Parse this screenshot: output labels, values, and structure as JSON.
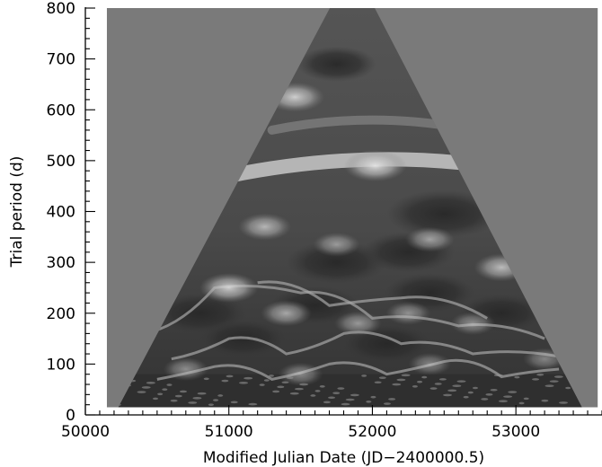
{
  "chart_data": {
    "type": "heatmap",
    "title": "",
    "xlabel": "Modified Julian Date (JD−2400000.5)",
    "ylabel": "Trial period (d)",
    "xlim": [
      50000,
      53600
    ],
    "ylim": [
      0,
      800
    ],
    "x_major_ticks": [
      50000,
      51000,
      52000,
      53000
    ],
    "x_minor_step": 100,
    "y_major_ticks": [
      0,
      100,
      200,
      300,
      400,
      500,
      600,
      700,
      800
    ],
    "y_minor_step": 20,
    "data_x_range": [
      50150,
      53570
    ],
    "data_y_range": [
      15,
      800
    ],
    "colormap": "grayscale",
    "background_color": "#7a7a7a",
    "cone_of_influence": {
      "apex_x": 51860,
      "apex_y": 800,
      "left_base_x": 50230,
      "right_base_x": 53460,
      "base_y": 15
    },
    "bright_features": [
      {
        "x": 52020,
        "y": 490,
        "intensity": 0.95
      },
      {
        "x": 51460,
        "y": 625,
        "intensity": 0.85
      },
      {
        "x": 51250,
        "y": 370,
        "intensity": 0.7
      },
      {
        "x": 52400,
        "y": 345,
        "intensity": 0.6
      },
      {
        "x": 52900,
        "y": 290,
        "intensity": 0.75
      },
      {
        "x": 51750,
        "y": 335,
        "intensity": 0.55
      },
      {
        "x": 51000,
        "y": 250,
        "intensity": 0.85
      },
      {
        "x": 51400,
        "y": 200,
        "intensity": 0.65
      },
      {
        "x": 51900,
        "y": 180,
        "intensity": 0.55
      },
      {
        "x": 52250,
        "y": 200,
        "intensity": 0.5
      },
      {
        "x": 52700,
        "y": 180,
        "intensity": 0.5
      },
      {
        "x": 50700,
        "y": 90,
        "intensity": 0.5
      },
      {
        "x": 51500,
        "y": 80,
        "intensity": 0.5
      },
      {
        "x": 52400,
        "y": 100,
        "intensity": 0.45
      },
      {
        "x": 53200,
        "y": 110,
        "intensity": 0.45
      }
    ],
    "dark_features": [
      {
        "x": 52500,
        "y": 395,
        "intensity": 0.9
      },
      {
        "x": 51750,
        "y": 300,
        "intensity": 0.7
      },
      {
        "x": 52250,
        "y": 320,
        "intensity": 0.6
      },
      {
        "x": 50800,
        "y": 200,
        "intensity": 0.6
      },
      {
        "x": 51600,
        "y": 215,
        "intensity": 0.55
      },
      {
        "x": 52100,
        "y": 140,
        "intensity": 0.55
      },
      {
        "x": 52900,
        "y": 200,
        "intensity": 0.5
      },
      {
        "x": 51100,
        "y": 150,
        "intensity": 0.5
      },
      {
        "x": 51750,
        "y": 690,
        "intensity": 0.4
      },
      {
        "x": 52400,
        "y": 240,
        "intensity": 0.55
      }
    ]
  }
}
